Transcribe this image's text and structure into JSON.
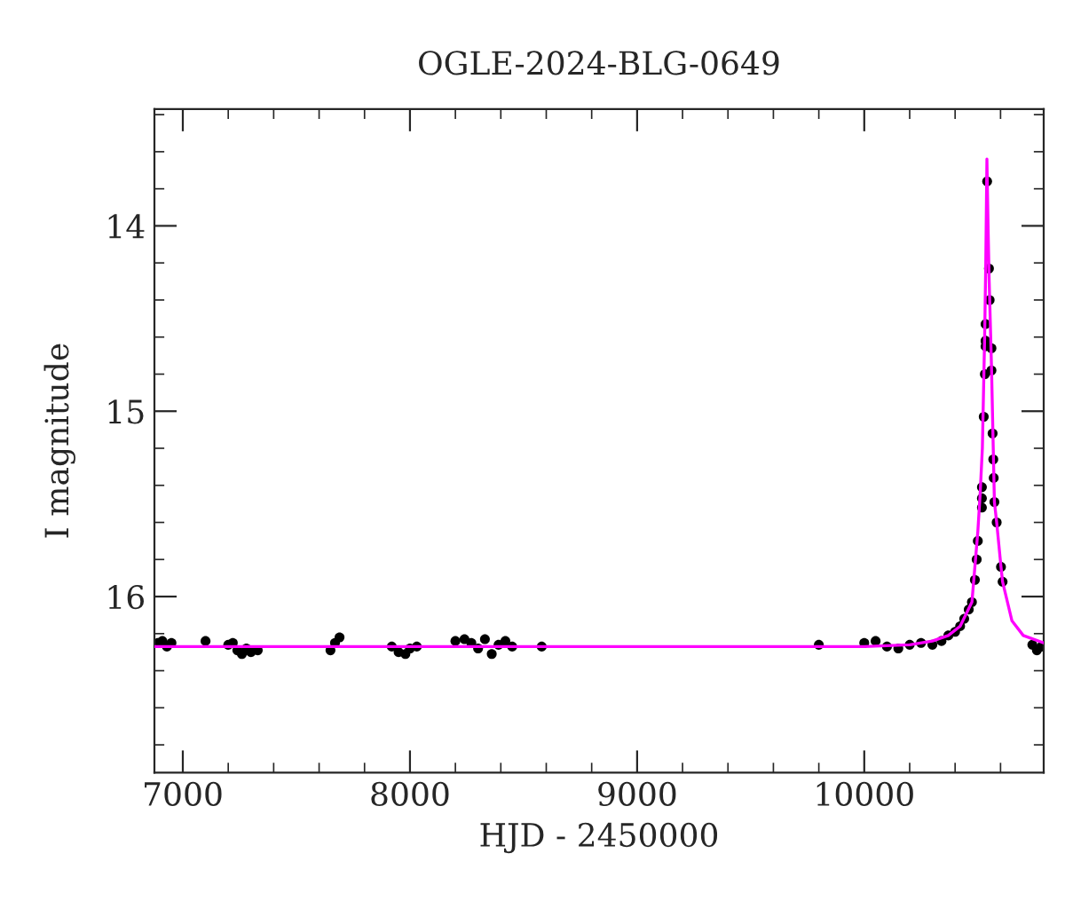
{
  "chart_data": {
    "type": "scatter",
    "title": "OGLE-2024-BLG-0649",
    "xlabel": "HJD - 2450000",
    "ylabel": "I magnitude",
    "xlim": [
      6875,
      10790
    ],
    "ylim": [
      16.95,
      13.37
    ],
    "xticks": [
      7000,
      8000,
      9000,
      10000
    ],
    "yticks": [
      14,
      15,
      16
    ],
    "grid": false,
    "legend": false,
    "series": [
      {
        "marker": "circle",
        "color": "#000000",
        "x": [
          6890,
          6910,
          6930,
          6950,
          7100,
          7200,
          7220,
          7240,
          7260,
          7280,
          7300,
          7330,
          7650,
          7670,
          7690,
          7920,
          7950,
          7980,
          8000,
          8030,
          8200,
          8240,
          8270,
          8300,
          8330,
          8360,
          8390,
          8420,
          8450,
          8580,
          9800,
          10000,
          10050,
          10100,
          10150,
          10200,
          10250,
          10300,
          10340,
          10370,
          10400,
          10422,
          10440,
          10460,
          10474,
          10487,
          10495,
          10500,
          10518,
          10518,
          10518,
          10526,
          10531,
          10534,
          10534,
          10534,
          10541,
          10549,
          10552,
          10560,
          10560,
          10565,
          10568,
          10570,
          10573,
          10583,
          10602,
          10609,
          10740,
          10760,
          10780
        ],
        "values": [
          16.25,
          16.24,
          16.27,
          16.25,
          16.24,
          16.26,
          16.25,
          16.29,
          16.31,
          16.28,
          16.3,
          16.29,
          16.29,
          16.25,
          16.22,
          16.27,
          16.3,
          16.31,
          16.28,
          16.27,
          16.24,
          16.23,
          16.25,
          16.28,
          16.23,
          16.31,
          16.26,
          16.24,
          16.27,
          16.27,
          16.26,
          16.25,
          16.24,
          16.27,
          16.28,
          16.26,
          16.25,
          16.26,
          16.24,
          16.21,
          16.19,
          16.16,
          16.12,
          16.07,
          16.03,
          15.91,
          15.8,
          15.7,
          15.52,
          15.47,
          15.41,
          15.03,
          14.8,
          14.65,
          14.62,
          14.53,
          13.76,
          14.23,
          14.4,
          14.66,
          14.78,
          15.12,
          15.26,
          15.36,
          15.49,
          15.6,
          15.84,
          15.92,
          16.26,
          16.29,
          16.27
        ]
      },
      {
        "type": "line",
        "color": "#ff00ff",
        "x": [
          6875,
          8000,
          9000,
          10000,
          10200,
          10300,
          10370,
          10422,
          10474,
          10500,
          10510,
          10520,
          10530,
          10535,
          10540,
          10545,
          10550,
          10560,
          10573,
          10583,
          10602,
          10609,
          10650,
          10700,
          10790
        ],
        "values": [
          16.27,
          16.27,
          16.27,
          16.27,
          16.26,
          16.24,
          16.21,
          16.16,
          16.03,
          15.65,
          15.45,
          15.2,
          14.6,
          14.2,
          13.64,
          14.0,
          14.3,
          14.75,
          15.49,
          15.6,
          15.84,
          15.92,
          16.13,
          16.21,
          16.25
        ]
      }
    ]
  }
}
